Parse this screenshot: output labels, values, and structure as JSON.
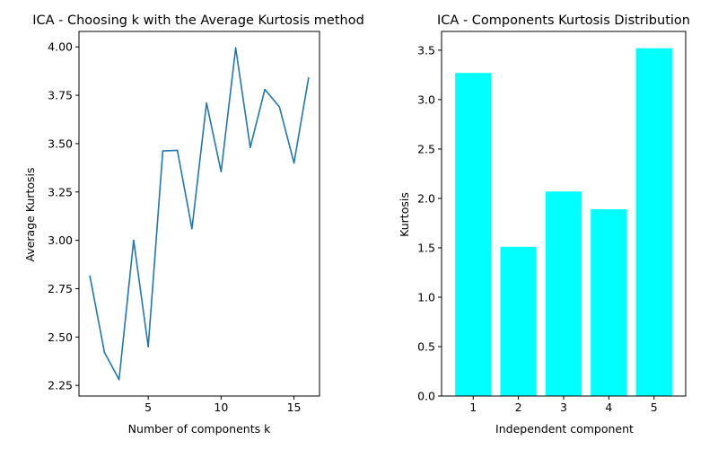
{
  "chart_data": [
    {
      "type": "line",
      "title": "ICA - Choosing k with the Average Kurtosis method",
      "xlabel": "Number of components k",
      "ylabel": "Average Kurtosis",
      "x": [
        1,
        2,
        3,
        4,
        5,
        6,
        7,
        8,
        9,
        10,
        11,
        12,
        13,
        14,
        15,
        16
      ],
      "values": [
        2.815,
        2.42,
        2.28,
        3.0,
        2.45,
        3.462,
        3.465,
        3.06,
        3.71,
        3.355,
        3.995,
        3.48,
        3.78,
        3.69,
        3.4,
        3.84
      ],
      "xlim": [
        0.25,
        16.75
      ],
      "ylim": [
        2.195,
        4.08
      ],
      "xticks": [
        5,
        10,
        15
      ],
      "yticks": [
        2.25,
        2.5,
        2.75,
        3.0,
        3.25,
        3.5,
        3.75,
        4.0
      ],
      "ytick_labels": [
        "2.25",
        "2.50",
        "2.75",
        "3.00",
        "3.25",
        "3.50",
        "3.75",
        "4.00"
      ],
      "color": "#1f77b4",
      "grid": false
    },
    {
      "type": "bar",
      "title": "ICA - Components Kurtosis Distribution",
      "xlabel": "Independent component",
      "ylabel": "Kurtosis",
      "categories": [
        "1",
        "2",
        "3",
        "4",
        "5"
      ],
      "values": [
        3.27,
        1.51,
        2.07,
        1.89,
        3.52
      ],
      "ylim": [
        0,
        3.69
      ],
      "yticks": [
        0.0,
        0.5,
        1.0,
        1.5,
        2.0,
        2.5,
        3.0,
        3.5
      ],
      "ytick_labels": [
        "0.0",
        "0.5",
        "1.0",
        "1.5",
        "2.0",
        "2.5",
        "3.0",
        "3.5"
      ],
      "color": "#00ffff",
      "grid": false
    }
  ]
}
